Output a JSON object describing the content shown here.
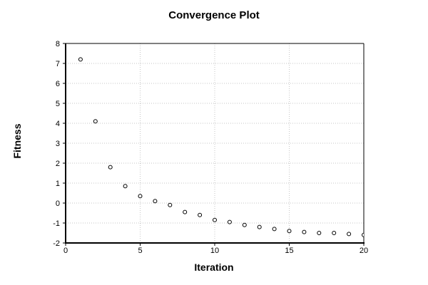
{
  "figure": {
    "background": "#ffffff"
  },
  "chart_data": {
    "type": "scatter",
    "title": "Convergence Plot",
    "xlabel": "Iteration",
    "ylabel": "Fitness",
    "x": [
      1,
      2,
      3,
      4,
      5,
      6,
      7,
      8,
      9,
      10,
      11,
      12,
      13,
      14,
      15,
      16,
      17,
      18,
      19,
      20
    ],
    "y": [
      7.2,
      4.1,
      1.8,
      0.85,
      0.35,
      0.1,
      -0.1,
      -0.45,
      -0.6,
      -0.85,
      -0.95,
      -1.1,
      -1.2,
      -1.3,
      -1.4,
      -1.45,
      -1.5,
      -1.5,
      -1.55,
      -1.6
    ],
    "xlim": [
      0,
      20
    ],
    "ylim": [
      -2,
      8
    ],
    "xticks": [
      0,
      5,
      10,
      15,
      20
    ],
    "yticks": [
      -2,
      -1,
      0,
      1,
      2,
      3,
      4,
      5,
      6,
      7,
      8
    ],
    "grid": true,
    "grid_style": "dotted",
    "legend": null,
    "marker": "open-circle",
    "colors": {
      "marker_stroke": "#000000",
      "marker_fill": "#ffffff",
      "grid": "#c6c6c6",
      "axis": "#000000",
      "text": "#000000",
      "background": "#ffffff"
    }
  }
}
